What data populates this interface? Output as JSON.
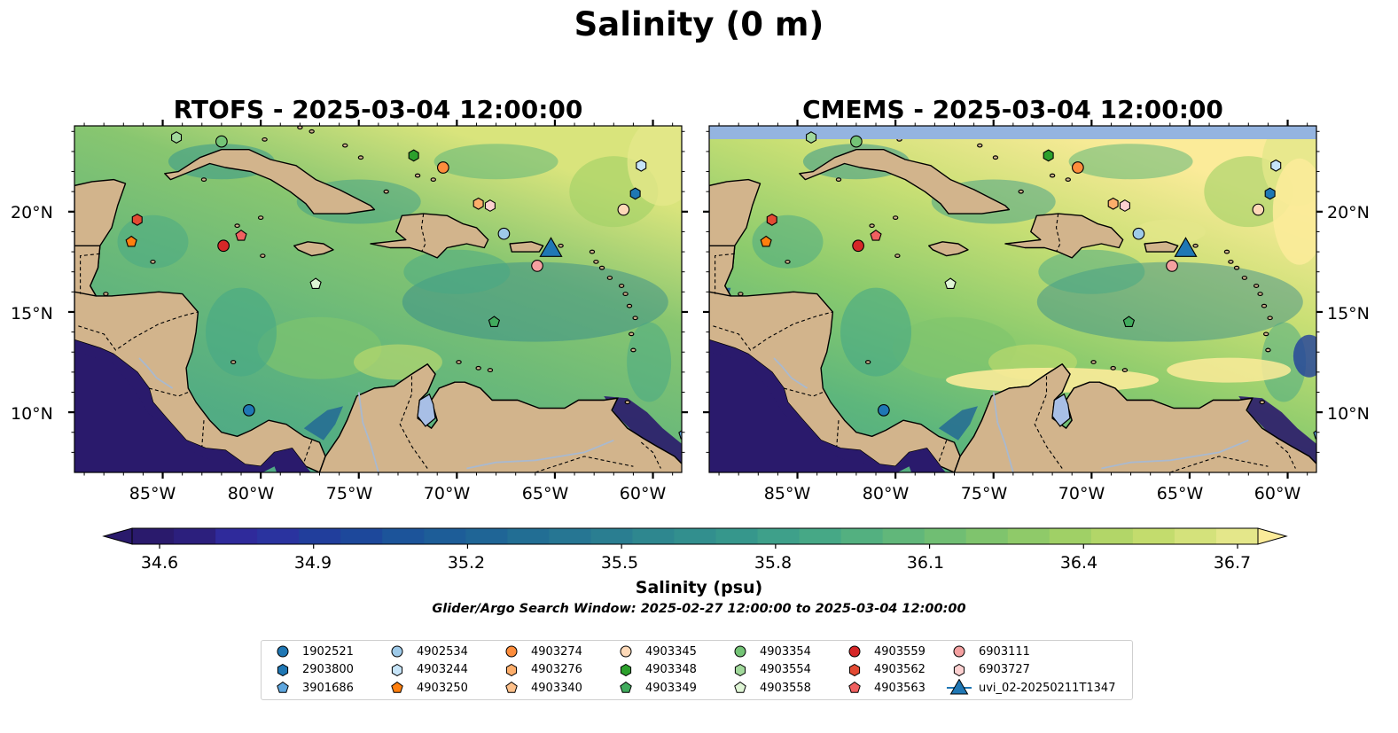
{
  "figure": {
    "title": "Salinity (0 m)"
  },
  "panels": [
    {
      "id": "rtofs",
      "title": "RTOFS - 2025-03-04 12:00:00",
      "model": "RTOFS",
      "nodata_strip": false
    },
    {
      "id": "cmems",
      "title": "CMEMS - 2025-03-04 12:00:00",
      "model": "CMEMS",
      "nodata_strip": true
    }
  ],
  "axes": {
    "lat_ticks": [
      "20°N",
      "15°N",
      "10°N"
    ],
    "lon_ticks": [
      "85°W",
      "80°W",
      "75°W",
      "70°W",
      "65°W",
      "60°W"
    ]
  },
  "colorbar": {
    "label": "Salinity (psu)",
    "ticks": [
      "34.6",
      "34.9",
      "35.2",
      "35.5",
      "35.8",
      "36.1",
      "36.4",
      "36.7"
    ],
    "min": 34.6,
    "max": 36.7,
    "colormap": "haline",
    "extend": "both"
  },
  "search_window": "Glider/Argo Search Window: 2025-02-27 12:00:00 to 2025-03-04 12:00:00",
  "colors": {
    "land": "#d2b48c",
    "nodata": "#94b4e0",
    "lake": "#a8bfe6",
    "river": "#a9b9cf",
    "low_salinity": "#2a1a6c",
    "high_salinity": "#fbeb99"
  },
  "legend": {
    "columns": [
      [
        {
          "label": "1902521",
          "marker": "circle",
          "color": "#1f77b4"
        },
        {
          "label": "2903800",
          "marker": "hexagon",
          "color": "#1f77b4"
        },
        {
          "label": "3901686",
          "marker": "pentagon",
          "color": "#5ea6de"
        }
      ],
      [
        {
          "label": "4902534",
          "marker": "circle",
          "color": "#9ecae9"
        },
        {
          "label": "4903244",
          "marker": "hexagon",
          "color": "#c6e4f8"
        },
        {
          "label": "4903250",
          "marker": "pentagon",
          "color": "#ff7f0e"
        }
      ],
      [
        {
          "label": "4903274",
          "marker": "circle",
          "color": "#fd8d3c"
        },
        {
          "label": "4903276",
          "marker": "hexagon",
          "color": "#fdae6b"
        },
        {
          "label": "4903340",
          "marker": "pentagon",
          "color": "#fdc08a"
        }
      ],
      [
        {
          "label": "4903345",
          "marker": "circle",
          "color": "#fdd9b8"
        },
        {
          "label": "4903348",
          "marker": "hexagon",
          "color": "#2ca02c"
        },
        {
          "label": "4903349",
          "marker": "pentagon",
          "color": "#41ab5d"
        }
      ],
      [
        {
          "label": "4903354",
          "marker": "circle",
          "color": "#74c476"
        },
        {
          "label": "4903554",
          "marker": "hexagon",
          "color": "#a1d99b"
        },
        {
          "label": "4903558",
          "marker": "pentagon",
          "color": "#dff5d5"
        }
      ],
      [
        {
          "label": "4903559",
          "marker": "circle",
          "color": "#d62728"
        },
        {
          "label": "4903562",
          "marker": "hexagon",
          "color": "#e34a33"
        },
        {
          "label": "4903563",
          "marker": "pentagon",
          "color": "#f06060"
        }
      ],
      [
        {
          "label": "6903111",
          "marker": "circle",
          "color": "#f4a0a0"
        },
        {
          "label": "6903727",
          "marker": "hexagon",
          "color": "#fcd0d0"
        },
        {
          "label": "uvi_02-20250211T1347",
          "marker": "triangle-line",
          "color": "#1f77b4"
        }
      ]
    ]
  },
  "markers_on_map": [
    {
      "label": "4903554",
      "lon": -84.3,
      "lat": 23.7
    },
    {
      "label": "4903354",
      "lon": -82.0,
      "lat": 23.5
    },
    {
      "label": "4903348",
      "lon": -72.2,
      "lat": 22.8
    },
    {
      "label": "4903274",
      "lon": -70.7,
      "lat": 22.2
    },
    {
      "label": "4903244",
      "lon": -60.6,
      "lat": 22.3
    },
    {
      "label": "2903800",
      "lon": -60.9,
      "lat": 20.9
    },
    {
      "label": "4903276",
      "lon": -68.9,
      "lat": 20.4
    },
    {
      "label": "6903727",
      "lon": -68.3,
      "lat": 20.3
    },
    {
      "label": "4903345",
      "lon": -61.5,
      "lat": 20.1
    },
    {
      "label": "4903562",
      "lon": -86.3,
      "lat": 19.6
    },
    {
      "label": "4902534",
      "lon": -67.6,
      "lat": 18.9
    },
    {
      "label": "4903563",
      "lon": -81.0,
      "lat": 18.8
    },
    {
      "label": "4903250",
      "lon": -86.6,
      "lat": 18.5
    },
    {
      "label": "4903559",
      "lon": -81.9,
      "lat": 18.3
    },
    {
      "label": "uvi_02-20250211T1347",
      "lon": -65.2,
      "lat": 18.2
    },
    {
      "label": "6903111",
      "lon": -65.9,
      "lat": 17.3
    },
    {
      "label": "4903558",
      "lon": -77.2,
      "lat": 16.4
    },
    {
      "label": "4903349",
      "lon": -68.1,
      "lat": 14.5
    },
    {
      "label": "1902521",
      "lon": -80.6,
      "lat": 10.1
    },
    {
      "label": "3901686",
      "lon": -58.4,
      "lat": 8.9
    }
  ]
}
